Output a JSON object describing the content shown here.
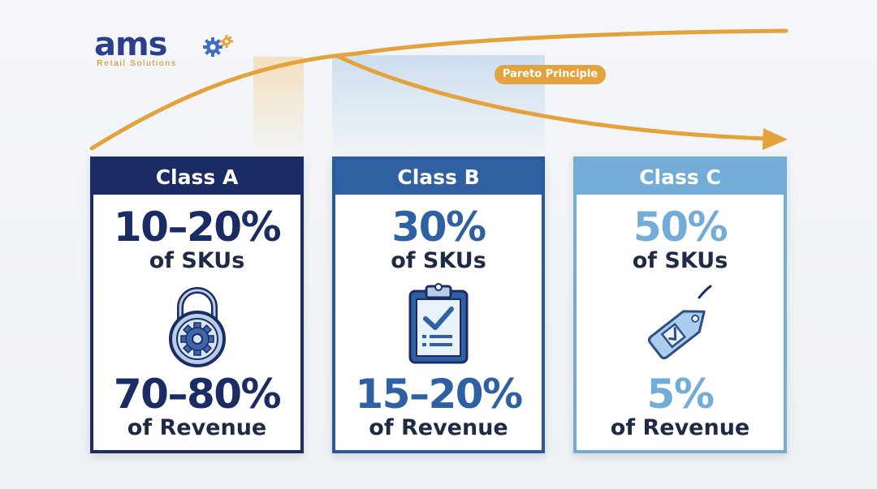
{
  "brand": {
    "name": "ams",
    "tagline": "Retail Solutions"
  },
  "pareto_label": "Pareto Principle",
  "colors": {
    "class_a": "#1b2b64",
    "class_b": "#2e60a2",
    "class_c": "#73acd6",
    "curve": "#e3a23c"
  },
  "classes": [
    {
      "title": "Class A",
      "sku_share": "10–20%",
      "sku_label": "of SKUs",
      "icon": "padlock-gear-icon",
      "revenue_share": "70–80%",
      "revenue_label": "of Revenue"
    },
    {
      "title": "Class B",
      "sku_share": "30%",
      "sku_label": "of SKUs",
      "icon": "clipboard-checklist-icon",
      "revenue_share": "15–20%",
      "revenue_label": "of Revenue"
    },
    {
      "title": "Class C",
      "sku_share": "50%",
      "sku_label": "of SKUs",
      "icon": "price-tag-check-icon",
      "revenue_share": "5%",
      "revenue_label": "of Revenue"
    }
  ]
}
